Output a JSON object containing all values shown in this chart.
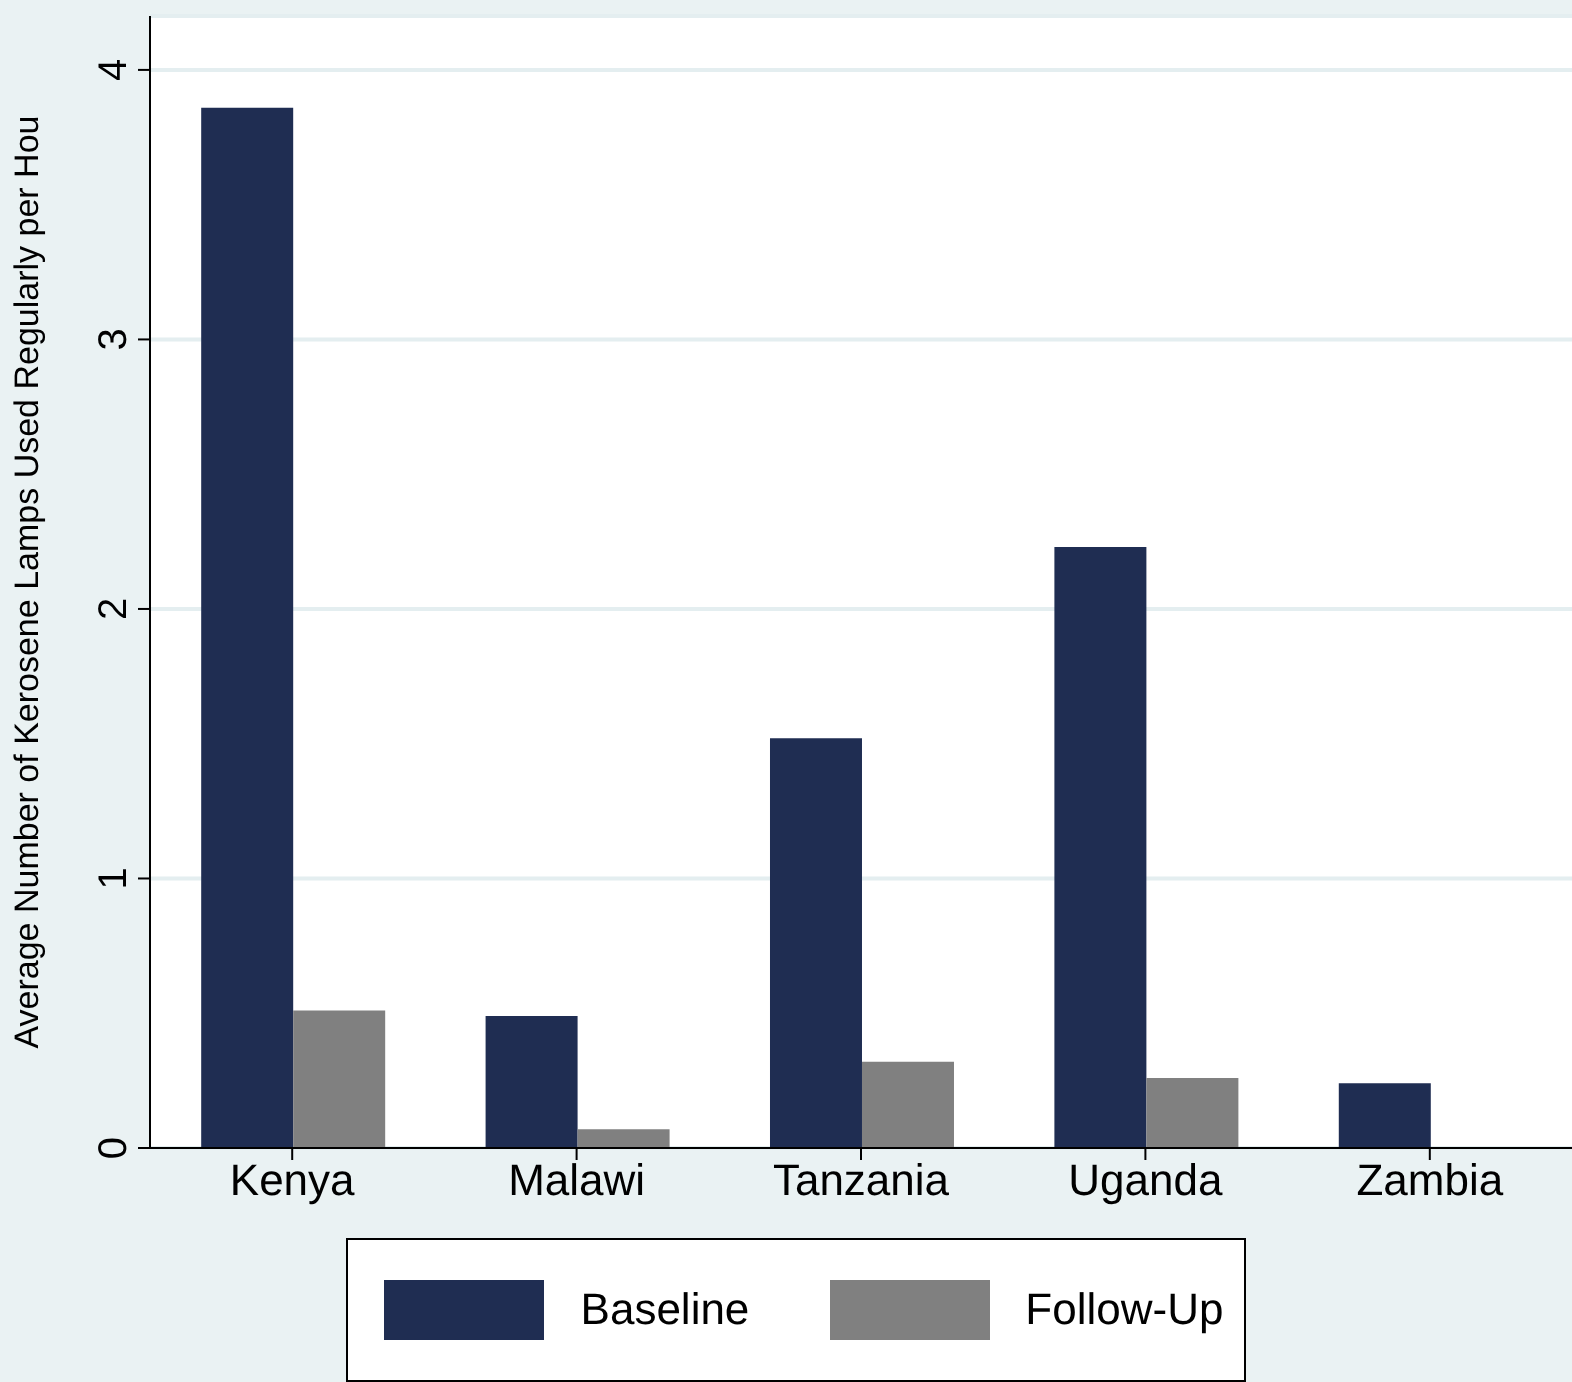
{
  "chart_data": {
    "type": "bar",
    "ylabel": "Average Number of Kerosene Lamps Used Regularly per Hou",
    "categories": [
      "Kenya",
      "Malawi",
      "Tanzania",
      "Uganda",
      "Zambia"
    ],
    "series": [
      {
        "name": "Baseline",
        "color": "#1f2d52",
        "values": [
          3.86,
          0.49,
          1.52,
          2.23,
          0.24
        ]
      },
      {
        "name": "Follow-Up",
        "color": "#808080",
        "values": [
          0.51,
          0.07,
          0.32,
          0.26,
          0
        ]
      }
    ],
    "ylim": [
      0,
      4.2
    ],
    "yticks": [
      0,
      1,
      2,
      3,
      4
    ],
    "grid": "y",
    "legend": "bottom"
  }
}
